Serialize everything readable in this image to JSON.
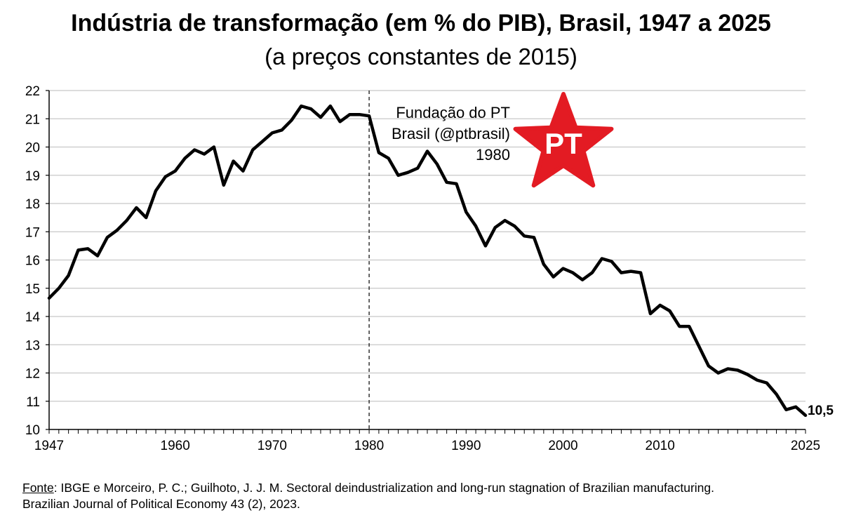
{
  "chart_data": {
    "type": "line",
    "title": "Indústria de transformação (em % do PIB), Brasil, 1947 a 2025",
    "subtitle": "(a preços constantes de 2015)",
    "xlabel": "",
    "ylabel": "",
    "xlim": [
      1947,
      2025
    ],
    "ylim": [
      10,
      22
    ],
    "grid": true,
    "x_ticks": [
      1947,
      1960,
      1970,
      1980,
      1990,
      2000,
      2010,
      2025
    ],
    "y_ticks": [
      10,
      11,
      12,
      13,
      14,
      15,
      16,
      17,
      18,
      19,
      20,
      21,
      22
    ],
    "series": [
      {
        "x": [
          1947,
          1948,
          1949,
          1950,
          1951,
          1952,
          1953,
          1954,
          1955,
          1956,
          1957,
          1958,
          1959,
          1960,
          1961,
          1962,
          1963,
          1964,
          1965,
          1966,
          1967,
          1968,
          1969,
          1970,
          1971,
          1972,
          1973,
          1974,
          1975,
          1976,
          1977,
          1978,
          1979,
          1980,
          1981,
          1982,
          1983,
          1984,
          1985,
          1986,
          1987,
          1988,
          1989,
          1990,
          1991,
          1992,
          1993,
          1994,
          1995,
          1996,
          1997,
          1998,
          1999,
          2000,
          2001,
          2002,
          2003,
          2004,
          2005,
          2006,
          2007,
          2008,
          2009,
          2010,
          2011,
          2012,
          2013,
          2014,
          2015,
          2016,
          2017,
          2018,
          2019,
          2020,
          2021,
          2022,
          2023,
          2024,
          2025
        ],
        "values": [
          14.65,
          15.0,
          15.45,
          16.35,
          16.4,
          16.15,
          16.8,
          17.05,
          17.4,
          17.85,
          17.5,
          18.45,
          18.95,
          19.15,
          19.6,
          19.9,
          19.75,
          20.0,
          18.65,
          19.5,
          19.15,
          19.9,
          20.2,
          20.5,
          20.6,
          20.95,
          21.45,
          21.35,
          21.05,
          21.45,
          20.9,
          21.15,
          21.15,
          21.1,
          19.8,
          19.6,
          19.0,
          19.1,
          19.25,
          19.85,
          19.4,
          18.75,
          18.7,
          17.7,
          17.2,
          16.5,
          17.15,
          17.4,
          17.2,
          16.85,
          16.8,
          15.85,
          15.4,
          15.7,
          15.55,
          15.3,
          15.55,
          16.05,
          15.95,
          15.55,
          15.6,
          15.55,
          14.1,
          14.4,
          14.2,
          13.65,
          13.65,
          12.95,
          12.25,
          12.0,
          12.15,
          12.1,
          11.95,
          11.75,
          11.65,
          11.25,
          10.7,
          10.8,
          10.5
        ]
      }
    ],
    "end_label": "10,5",
    "marker": {
      "x": 1980,
      "label_lines": [
        "Fundação do PT",
        "Brasil (@ptbrasil)",
        "1980"
      ]
    },
    "logo_text": "PT",
    "colors": {
      "line": "#000000",
      "grid": "#c8c8c8",
      "star": "#e31b23",
      "logo_text": "#ffffff"
    }
  },
  "source": {
    "label": "Fonte",
    "line1": ": IBGE e Morceiro, P. C.; Guilhoto, J. J. M. Sectoral deindustrialization and long-run stagnation of Brazilian manufacturing.",
    "line2": "Brazilian Journal of Political Economy 43 (2), 2023."
  }
}
